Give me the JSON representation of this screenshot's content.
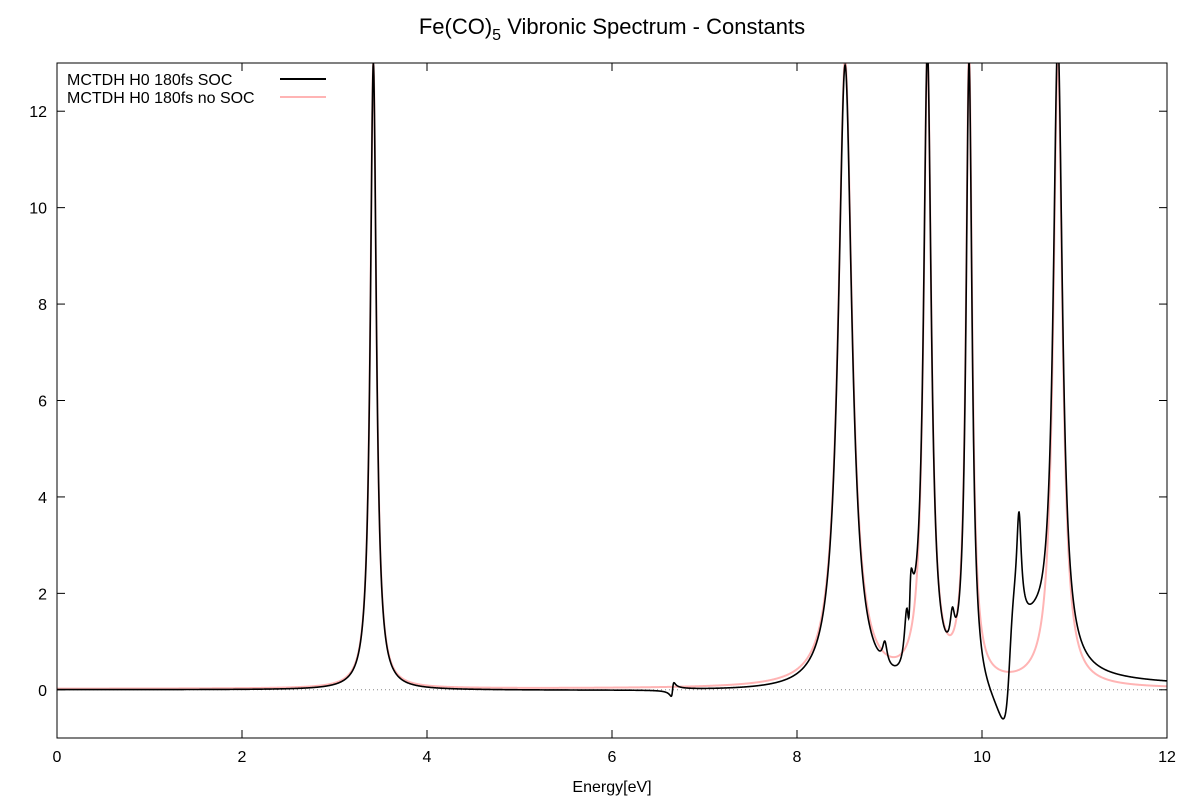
{
  "chart_data": {
    "type": "line",
    "title_main": "Fe(CO)",
    "title_sub": "5",
    "title_rest": " Vibronic Spectrum - Constants",
    "xlabel": "Energy[eV]",
    "ylabel": "",
    "xlim": [
      0,
      12
    ],
    "ylim": [
      -1,
      13
    ],
    "x_ticks": [
      0,
      2,
      4,
      6,
      8,
      10,
      12
    ],
    "y_ticks": [
      0,
      2,
      4,
      6,
      8,
      10,
      12
    ],
    "grid": false,
    "zero_line": true,
    "legend_position": "top-left",
    "series": [
      {
        "name": "MCTDH H0 180fs SOC",
        "color": "#000000",
        "base": 0.02,
        "peaks": [
          {
            "x0": 3.42,
            "a": 13.0,
            "g": 0.04
          },
          {
            "x0": 8.52,
            "a": 13.0,
            "g": 0.09
          },
          {
            "x0": 9.41,
            "a": 13.0,
            "g": 0.05
          },
          {
            "x0": 9.86,
            "a": 13.0,
            "g": 0.04
          },
          {
            "x0": 10.82,
            "a": 13.0,
            "g": 0.06
          },
          {
            "x0": 8.95,
            "a": 0.45,
            "g": 0.03
          },
          {
            "x0": 9.19,
            "a": 1.6,
            "g": 0.035
          },
          {
            "x0": 9.68,
            "a": 0.7,
            "g": 0.03
          },
          {
            "x0": 10.4,
            "a": 2.0,
            "g": 0.03
          },
          {
            "x0": 10.58,
            "a": 0.4,
            "g": 0.15
          }
        ],
        "dispersive": [
          {
            "x0": 6.655,
            "a": 0.28,
            "g": 0.015
          },
          {
            "x0": 9.22,
            "a": 1.6,
            "g": 0.02
          },
          {
            "x0": 10.3,
            "a": 2.3,
            "g": 0.07
          }
        ]
      },
      {
        "name": "MCTDH H0 180fs no SOC",
        "color": "#ffb4b4",
        "base": 0.02,
        "peaks": [
          {
            "x0": 3.42,
            "a": 13.0,
            "g": 0.04
          },
          {
            "x0": 8.52,
            "a": 13.0,
            "g": 0.09
          },
          {
            "x0": 9.41,
            "a": 13.0,
            "g": 0.05
          },
          {
            "x0": 9.86,
            "a": 13.0,
            "g": 0.04
          },
          {
            "x0": 10.82,
            "a": 13.0,
            "g": 0.06
          }
        ],
        "dispersive": []
      }
    ]
  }
}
